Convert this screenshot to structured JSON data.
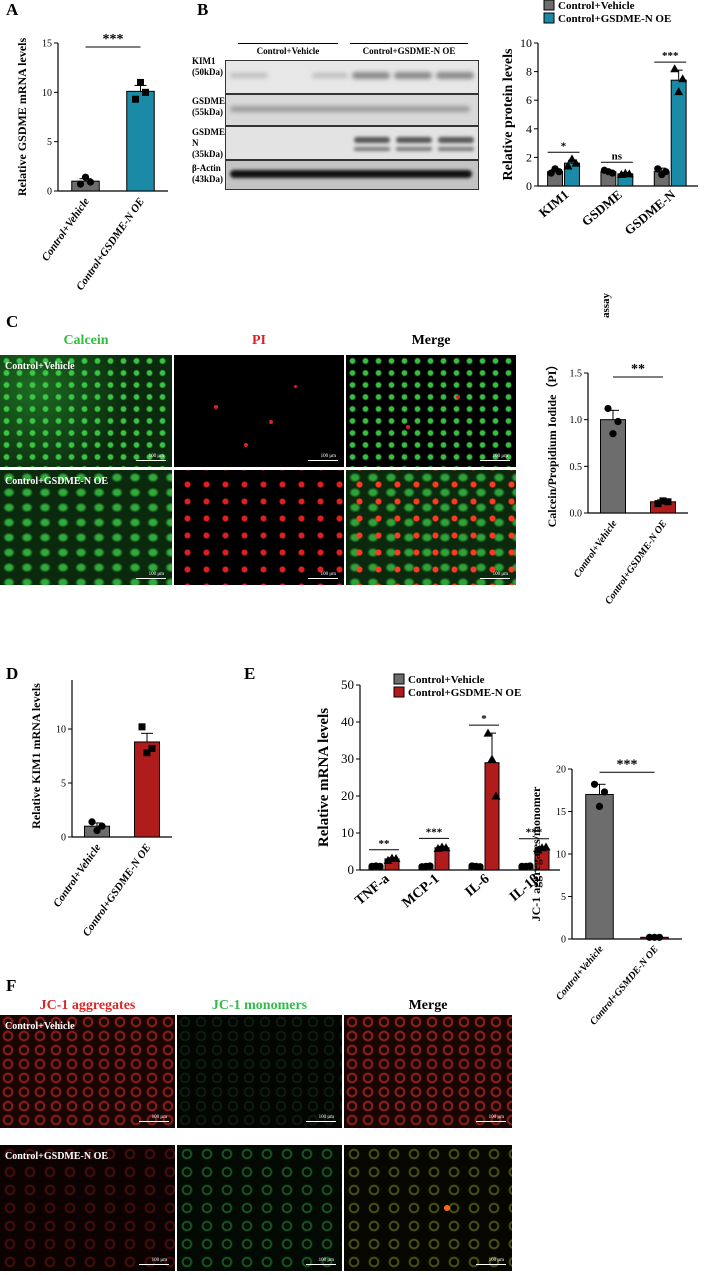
{
  "panel_labels": {
    "A": "A",
    "B": "B",
    "C": "C",
    "D": "D",
    "E": "E",
    "F": "F"
  },
  "colors": {
    "vehicle_gray": "#6d6d6d",
    "teal": "#1b8aa6",
    "red": "#b01c1c",
    "calcein_green": "#2fbf3c",
    "pi_red": "#e02020",
    "jc_red": "#d32a2a",
    "jc_green": "#33b94a"
  },
  "western_blot": {
    "group_labels": [
      "Control+Vehicle",
      "Control+GSDME-N OE"
    ],
    "bands": [
      {
        "name": "KIM1",
        "size": "(50kDa)"
      },
      {
        "name": "GSDME",
        "size": "(55kDa)"
      },
      {
        "name": "GSDME-N",
        "size": "(35kDa)"
      },
      {
        "name": "β-Actin",
        "size": "(43kDa)"
      }
    ]
  },
  "panel_c": {
    "headers": [
      "Calcein",
      "PI",
      "Merge"
    ],
    "row_labels": [
      "Control+Vehicle",
      "Control+GSDME-N OE"
    ],
    "scale_text": "100 μm",
    "side_note": "assay"
  },
  "panel_f": {
    "headers": [
      "JC-1 aggregates",
      "JC-1 monomers",
      "Merge"
    ],
    "row_labels": [
      "Control+Vehicle",
      "Control+GSDME-N OE"
    ],
    "scale_text": "100 μm"
  },
  "chart_data": [
    {
      "id": "A",
      "type": "bar",
      "categories": [
        "Control+Vehicle",
        "Control+GSDME-N OE"
      ],
      "values": [
        1.0,
        10.1
      ],
      "errors": [
        0.25,
        0.6
      ],
      "points": [
        [
          0.7,
          1.4,
          0.9
        ],
        [
          9.3,
          11.0,
          10.0
        ]
      ],
      "ylabel": "Relative GSDME mRNA levels",
      "ylim": [
        0,
        15
      ],
      "yticks": [
        0,
        5,
        10,
        15
      ],
      "significance": "***"
    },
    {
      "id": "B",
      "type": "bar",
      "categories": [
        "KIM1",
        "GSDME",
        "GSDME-N"
      ],
      "series": [
        {
          "name": "Control+Vehicle",
          "values": [
            1.0,
            1.0,
            1.0
          ],
          "errors": [
            0.15,
            0.1,
            0.25
          ]
        },
        {
          "name": "Control+GSDME-N OE",
          "values": [
            1.6,
            0.85,
            7.4
          ],
          "errors": [
            0.2,
            0.1,
            0.7
          ]
        }
      ],
      "ylabel": "Relative protein levels",
      "ylim": [
        0,
        10
      ],
      "yticks": [
        0,
        2,
        4,
        6,
        8,
        10
      ],
      "significance": [
        "*",
        "ns",
        "***"
      ]
    },
    {
      "id": "C",
      "type": "bar",
      "categories": [
        "Control+Vehicle",
        "Control+GSDME-N OE"
      ],
      "values": [
        1.0,
        0.12
      ],
      "errors": [
        0.1,
        0.02
      ],
      "points": [
        [
          1.12,
          0.85,
          0.98
        ],
        [
          0.1,
          0.13,
          0.12
        ]
      ],
      "ylabel": "Calcein/Propidium Iodide（PI）",
      "ylim": [
        0,
        1.5
      ],
      "yticks": [
        "0.0",
        "0.5",
        "1.0",
        "1.5"
      ],
      "significance": "**"
    },
    {
      "id": "D",
      "type": "bar",
      "categories": [
        "Control+Vehicle",
        "Control+GSDME-N OE"
      ],
      "values": [
        1.0,
        8.8
      ],
      "errors": [
        0.3,
        0.8
      ],
      "points": [
        [
          1.4,
          0.6,
          1.0
        ],
        [
          10.2,
          7.8,
          8.2
        ]
      ],
      "ylabel": "Relative KIM1 mRNA levels",
      "ylim": [
        0,
        15
      ],
      "yticks": [
        0,
        5,
        10,
        15
      ],
      "significance": "**"
    },
    {
      "id": "E",
      "type": "bar",
      "categories": [
        "TNF-a",
        "MCP-1",
        "IL-6",
        "IL-1β"
      ],
      "series": [
        {
          "name": "Control+Vehicle",
          "values": [
            1.0,
            1.0,
            1.0,
            1.0
          ],
          "errors": [
            0.2,
            0.2,
            0.2,
            0.2
          ]
        },
        {
          "name": "Control+GSDME-N OE",
          "values": [
            3.0,
            6.0,
            29.0,
            5.8
          ],
          "errors": [
            0.3,
            0.4,
            8.0,
            0.5
          ]
        }
      ],
      "ylabel": "Relative  mRNA levels",
      "ylim": [
        0,
        50
      ],
      "yticks": [
        0,
        10,
        20,
        30,
        40,
        50
      ],
      "significance": [
        "**",
        "***",
        "*",
        "***"
      ]
    },
    {
      "id": "F",
      "type": "bar",
      "categories": [
        "Control+Vehicle",
        "Control+GSMDE-N OE"
      ],
      "values": [
        17.0,
        0.2
      ],
      "errors": [
        1.2,
        0.1
      ],
      "points": [
        [
          18.2,
          15.6,
          17.3
        ],
        [
          0.2,
          0.2,
          0.2
        ]
      ],
      "ylabel": "JC-1 aggregates/monomer",
      "ylim": [
        0,
        20
      ],
      "yticks": [
        0,
        5,
        10,
        15,
        20
      ],
      "significance": "***"
    }
  ]
}
